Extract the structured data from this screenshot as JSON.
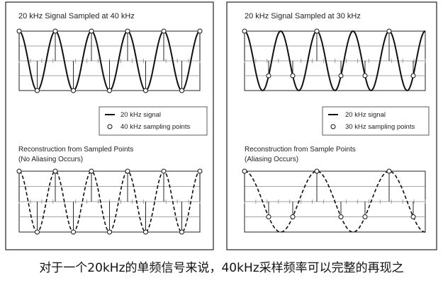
{
  "panels": [
    {
      "title": "20 kHz Signal Sampled at 40 kHz",
      "legend": {
        "signal_label": "20 kHz signal",
        "sampling_label": "40 kHz sampling points"
      },
      "reconstruction_title": "Reconstruction from Sampled Points",
      "reconstruction_note": "(No Aliasing Occurs)",
      "signal_khz": 20,
      "sampling_khz": 40,
      "aliasing": false
    },
    {
      "title": "20 kHz Signal Sampled at 30 kHz",
      "legend": {
        "signal_label": "20 kHz signal",
        "sampling_label": "30 kHz sampling points"
      },
      "reconstruction_title": "Reconstruction from Sample Points",
      "reconstruction_note": "(Aliasing Occurs)",
      "signal_khz": 20,
      "sampling_khz": 30,
      "aliasing": true
    }
  ],
  "caption": "对于一个20kHz的单频信号来说，40kHz采样频率可以完整的再现之",
  "colors": {
    "line": "#111111",
    "frame": "#222222",
    "grid": "#888888",
    "background": "#ffffff"
  }
}
